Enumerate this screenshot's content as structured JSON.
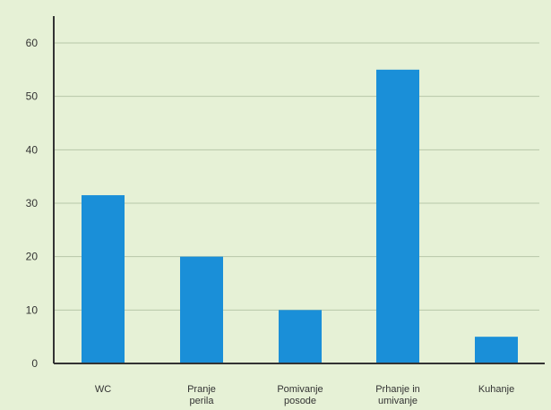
{
  "chart_data": {
    "type": "bar",
    "categories": [
      [
        "WC"
      ],
      [
        "Pranje",
        "perila"
      ],
      [
        "Pomivanje",
        "posode"
      ],
      [
        "Prhanje in",
        "umivanje"
      ],
      [
        "Kuhanje"
      ]
    ],
    "values": [
      31.5,
      20,
      10,
      55,
      5
    ],
    "title": "",
    "xlabel": "",
    "ylabel": "",
    "ylim": [
      0,
      60
    ],
    "yticks": [
      "0",
      "10",
      "20",
      "30",
      "40",
      "50",
      "60"
    ],
    "grid": true,
    "legend": "none",
    "colors": {
      "background": "#e6f1d6",
      "bar": "#1a8fd8",
      "grid": "#b7c7a8",
      "axis": "#333333"
    }
  }
}
